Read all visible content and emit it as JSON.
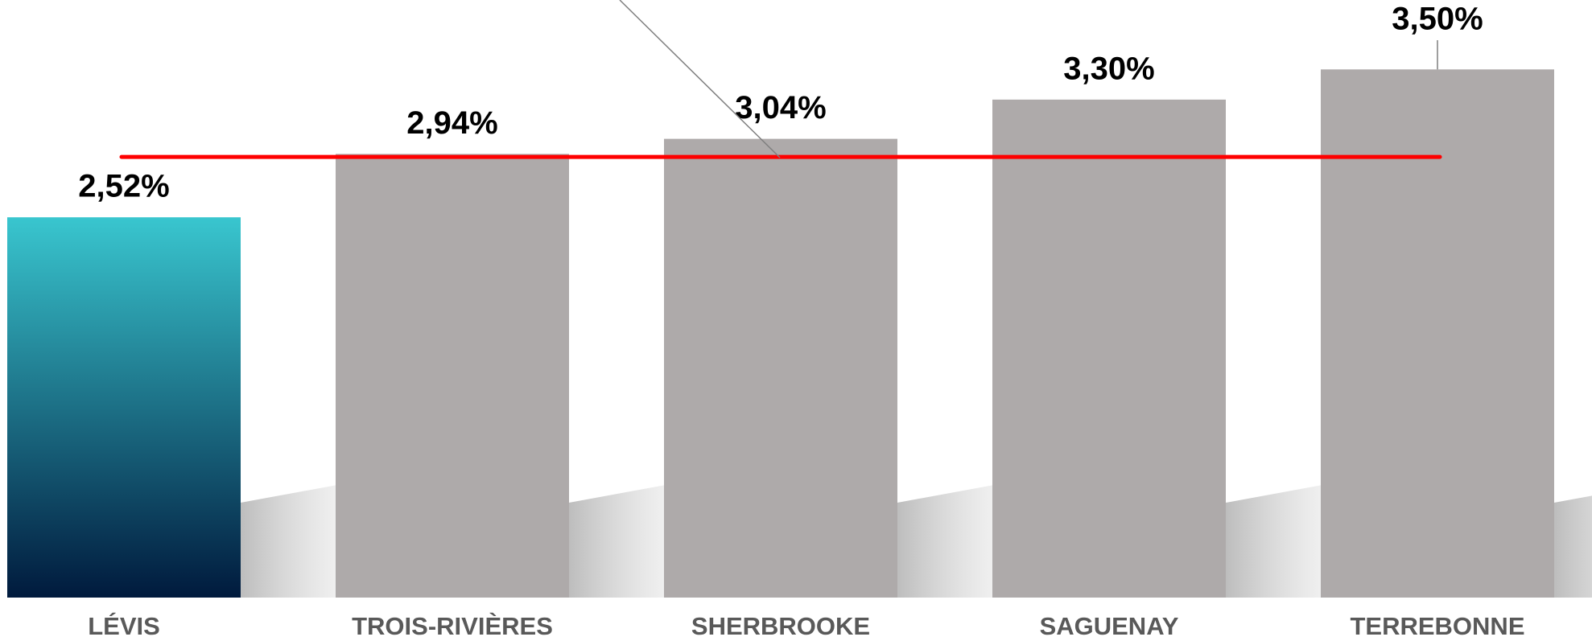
{
  "chart_data": {
    "type": "bar",
    "categories": [
      "LÉVIS",
      "TROIS-RIVIÈRES",
      "SHERBROOKE",
      "SAGUENAY",
      "TERREBONNE"
    ],
    "values": [
      2.52,
      2.94,
      3.04,
      3.3,
      3.5
    ],
    "value_labels": [
      "2,52%",
      "2,94%",
      "3,04%",
      "3,30%",
      "3,50%"
    ],
    "colors": [
      "#36c4cf",
      "#aeaaaa",
      "#aeaaaa",
      "#aeaaaa",
      "#aeaaaa"
    ],
    "highlight_gradient": [
      "#39c6cf",
      "#001a3d"
    ],
    "reference_line": {
      "value": 2.92,
      "color": "#ff0000"
    },
    "ylim": [
      0,
      3.96
    ]
  }
}
